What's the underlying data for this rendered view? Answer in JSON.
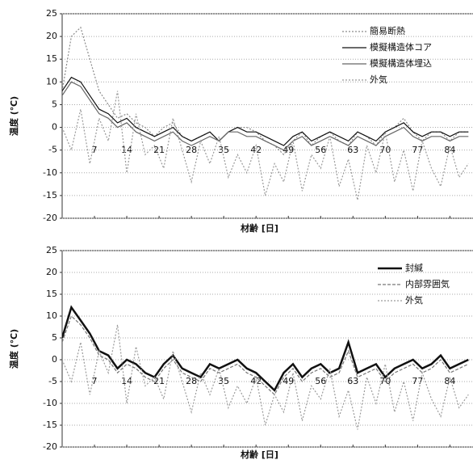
{
  "chart_data": [
    {
      "type": "line",
      "xlabel": "材齢 [日]",
      "ylabel": "温度 (℃)",
      "x": [
        0,
        2,
        4,
        6,
        8,
        10,
        12,
        14,
        16,
        18,
        20,
        22,
        24,
        26,
        28,
        30,
        32,
        34,
        36,
        38,
        40,
        42,
        44,
        46,
        48,
        50,
        52,
        54,
        56,
        58,
        60,
        62,
        64,
        66,
        68,
        70,
        72,
        74,
        76,
        78,
        80,
        82,
        84,
        86,
        88
      ],
      "xlim": [
        0,
        89
      ],
      "ylim": [
        -20,
        25
      ],
      "xticks": [
        7,
        14,
        21,
        28,
        35,
        42,
        49,
        56,
        63,
        70,
        77,
        84
      ],
      "yticks": [
        -20,
        -15,
        -10,
        -5,
        0,
        5,
        10,
        15,
        20,
        25
      ],
      "grid": true,
      "legend": "upper right",
      "series": [
        {
          "name": "簡易断熱",
          "color": "#8a8a8a",
          "dash": "dotted",
          "values": [
            8,
            20,
            22,
            15,
            8,
            5,
            2,
            3,
            1,
            0,
            -2,
            0,
            1,
            -2,
            -3,
            -2,
            -1,
            -3,
            -1,
            0,
            0,
            -1,
            -3,
            -4,
            -6,
            -3,
            -1,
            -4,
            -2,
            -1,
            -3,
            -4,
            -1,
            -2,
            -4,
            -1,
            0,
            2,
            -1,
            -3,
            -1,
            -1,
            -3,
            -1,
            -1
          ]
        },
        {
          "name": "模擬構造体コア",
          "color": "#111111",
          "dash": "solid",
          "values": [
            8,
            11,
            10,
            7,
            4,
            3,
            1,
            2,
            0,
            -1,
            -2,
            -1,
            0,
            -2,
            -3,
            -2,
            -1,
            -3,
            -1,
            0,
            -1,
            -1,
            -2,
            -3,
            -4,
            -2,
            -1,
            -3,
            -2,
            -1,
            -2,
            -3,
            -1,
            -2,
            -3,
            -1,
            0,
            1,
            -1,
            -2,
            -1,
            -1,
            -2,
            -1,
            -1
          ]
        },
        {
          "name": "模擬構造体埋込",
          "color": "#666666",
          "dash": "solid",
          "values": [
            7,
            10,
            9,
            6,
            3,
            2,
            0,
            1,
            -1,
            -2,
            -3,
            -2,
            -1,
            -3,
            -4,
            -3,
            -2,
            -3,
            -1,
            -1,
            -2,
            -2,
            -3,
            -4,
            -5,
            -3,
            -2,
            -4,
            -3,
            -2,
            -3,
            -4,
            -2,
            -3,
            -4,
            -2,
            -1,
            0,
            -2,
            -3,
            -2,
            -2,
            -3,
            -2,
            -2
          ]
        },
        {
          "name": "外気",
          "color": "#9a9a9a",
          "dash": "dotted",
          "values": [
            0,
            -5,
            4,
            -8,
            2,
            -3,
            8,
            -10,
            3,
            -6,
            -4,
            -9,
            2,
            -5,
            -12,
            -3,
            -8,
            -2,
            -11,
            -6,
            -10,
            -4,
            -15,
            -8,
            -12,
            -3,
            -14,
            -6,
            -9,
            -2,
            -13,
            -7,
            -16,
            -4,
            -10,
            -1,
            -12,
            -5,
            -14,
            -3,
            -9,
            -13,
            -4,
            -11,
            -8
          ]
        }
      ]
    },
    {
      "type": "line",
      "xlabel": "材齢 [日]",
      "ylabel": "温度 (℃)",
      "x": [
        0,
        2,
        4,
        6,
        8,
        10,
        12,
        14,
        16,
        18,
        20,
        22,
        24,
        26,
        28,
        30,
        32,
        34,
        36,
        38,
        40,
        42,
        44,
        46,
        48,
        50,
        52,
        54,
        56,
        58,
        60,
        62,
        64,
        66,
        68,
        70,
        72,
        74,
        76,
        78,
        80,
        82,
        84,
        86,
        88
      ],
      "xlim": [
        0,
        89
      ],
      "ylim": [
        -20,
        25
      ],
      "xticks": [
        7,
        14,
        21,
        28,
        35,
        42,
        49,
        56,
        63,
        70,
        77,
        84
      ],
      "yticks": [
        -20,
        -15,
        -10,
        -5,
        0,
        5,
        10,
        15,
        20,
        25
      ],
      "grid": true,
      "legend": "upper right",
      "series": [
        {
          "name": "封緘",
          "color": "#111111",
          "dash": "thick",
          "values": [
            5,
            12,
            9,
            6,
            2,
            1,
            -2,
            0,
            -1,
            -3,
            -4,
            -1,
            1,
            -2,
            -3,
            -4,
            -1,
            -2,
            -1,
            0,
            -2,
            -3,
            -5,
            -7,
            -3,
            -1,
            -4,
            -2,
            -1,
            -3,
            -2,
            4,
            -3,
            -2,
            -1,
            -4,
            -2,
            -1,
            0,
            -2,
            -1,
            1,
            -2,
            -1,
            0
          ]
        },
        {
          "name": "内部雰囲気",
          "color": "#777777",
          "dash": "dashed",
          "values": [
            4,
            10,
            8,
            5,
            1,
            0,
            -3,
            -1,
            -2,
            -4,
            -5,
            -2,
            0,
            -3,
            -4,
            -5,
            -2,
            -3,
            -2,
            -1,
            -3,
            -4,
            -6,
            -8,
            -4,
            -2,
            -5,
            -3,
            -2,
            -4,
            -3,
            2,
            -4,
            -3,
            -2,
            -5,
            -3,
            -2,
            -1,
            -3,
            -2,
            0,
            -3,
            -2,
            -1
          ]
        },
        {
          "name": "外気",
          "color": "#9a9a9a",
          "dash": "dotted",
          "values": [
            0,
            -5,
            4,
            -8,
            2,
            -3,
            8,
            -10,
            3,
            -6,
            -4,
            -9,
            2,
            -5,
            -12,
            -3,
            -8,
            -2,
            -11,
            -6,
            -10,
            -4,
            -15,
            -8,
            -12,
            -3,
            -14,
            -6,
            -9,
            -2,
            -13,
            -7,
            -16,
            -4,
            -10,
            -1,
            -12,
            -5,
            -14,
            -3,
            -9,
            -13,
            -4,
            -11,
            -8
          ]
        }
      ]
    }
  ]
}
